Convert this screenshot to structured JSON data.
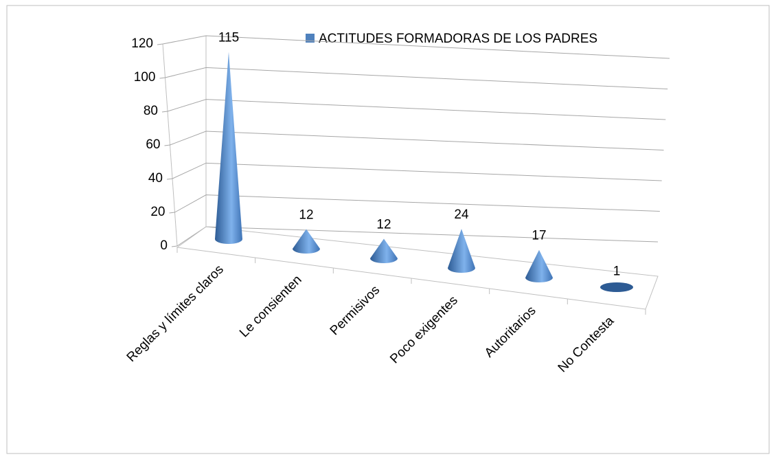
{
  "chart_data": {
    "type": "cone",
    "categories": [
      "Reglas y límites claros",
      "Le consienten",
      "Permisivos",
      "Poco exigentes",
      "Autoritarios",
      "No Contesta"
    ],
    "series": [
      {
        "name": "ACTITUDES FORMADORAS DE LOS PADRES",
        "color": "#4f81bd",
        "values": [
          115,
          12,
          12,
          24,
          17,
          1
        ]
      }
    ],
    "ylim": [
      0,
      120
    ],
    "yticks": [
      0,
      20,
      40,
      60,
      80,
      100,
      120
    ],
    "grid": true,
    "legend": "top"
  }
}
